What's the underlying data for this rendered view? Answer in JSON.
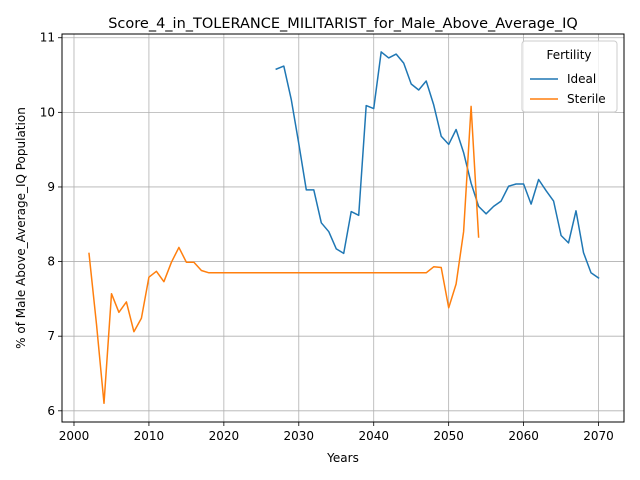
{
  "chart_data": {
    "type": "line",
    "title": "Score_4_in_TOLERANCE_MILITARIST_for_Male_Above_Average_IQ",
    "xlabel": "Years",
    "ylabel": "% of Male Above_Average_IQ Population",
    "xlim": [
      1998.4,
      2073.4
    ],
    "ylim": [
      5.85,
      11.05
    ],
    "xticks": [
      2000,
      2010,
      2020,
      2030,
      2040,
      2050,
      2060,
      2070
    ],
    "yticks": [
      6,
      7,
      8,
      9,
      10,
      11
    ],
    "grid": true,
    "legend": {
      "title": "Fertility",
      "placement": "top-right"
    },
    "series": [
      {
        "name": "Ideal",
        "color": "#1f77b4",
        "x": [
          2027,
          2028,
          2029,
          2030,
          2031,
          2032,
          2033,
          2034,
          2035,
          2036,
          2037,
          2038,
          2039,
          2040,
          2041,
          2042,
          2043,
          2044,
          2045,
          2046,
          2047,
          2048,
          2049,
          2050,
          2051,
          2052,
          2053,
          2054,
          2055,
          2056,
          2057,
          2058,
          2059,
          2060,
          2061,
          2062,
          2063,
          2064,
          2065,
          2066,
          2067,
          2068,
          2069,
          2070
        ],
        "y": [
          10.58,
          10.62,
          10.17,
          9.58,
          8.96,
          8.96,
          8.52,
          8.4,
          8.17,
          8.11,
          8.67,
          8.62,
          10.09,
          10.05,
          10.81,
          10.73,
          10.78,
          10.66,
          10.38,
          10.3,
          10.42,
          10.1,
          9.68,
          9.57,
          9.77,
          9.46,
          9.05,
          8.74,
          8.64,
          8.74,
          8.81,
          9.01,
          9.04,
          9.04,
          8.77,
          9.1,
          8.95,
          8.81,
          8.35,
          8.25,
          8.68,
          8.12,
          7.85,
          7.78
        ]
      },
      {
        "name": "Sterile",
        "color": "#ff7f0e",
        "x": [
          2002,
          2003,
          2004,
          2005,
          2006,
          2007,
          2008,
          2009,
          2010,
          2011,
          2012,
          2013,
          2014,
          2015,
          2016,
          2017,
          2018,
          2019,
          2020,
          2021,
          2022,
          2023,
          2024,
          2025,
          2026,
          2027,
          2028,
          2029,
          2030,
          2031,
          2032,
          2033,
          2034,
          2035,
          2036,
          2037,
          2038,
          2039,
          2040,
          2041,
          2042,
          2043,
          2044,
          2045,
          2046,
          2047,
          2048,
          2049,
          2050,
          2051,
          2052,
          2053,
          2054
        ],
        "y": [
          8.11,
          7.16,
          6.1,
          7.57,
          7.32,
          7.46,
          7.06,
          7.24,
          7.79,
          7.87,
          7.73,
          7.99,
          8.19,
          7.99,
          7.99,
          7.88,
          7.85,
          7.85,
          7.85,
          7.85,
          7.85,
          7.85,
          7.85,
          7.85,
          7.85,
          7.85,
          7.85,
          7.85,
          7.85,
          7.85,
          7.85,
          7.85,
          7.85,
          7.85,
          7.85,
          7.85,
          7.85,
          7.85,
          7.85,
          7.85,
          7.85,
          7.85,
          7.85,
          7.85,
          7.85,
          7.85,
          7.93,
          7.92,
          7.38,
          7.7,
          8.4,
          10.08,
          8.33
        ]
      }
    ]
  }
}
